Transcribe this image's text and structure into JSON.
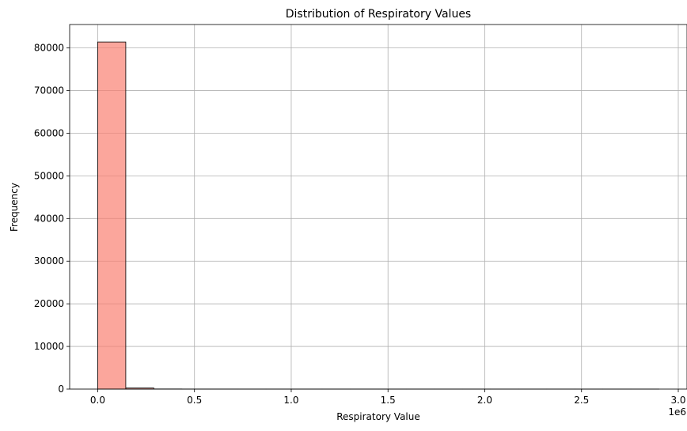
{
  "chart_data": {
    "type": "bar",
    "subtype": "histogram",
    "title": "Distribution of Respiratory Values",
    "xlabel": "Respiratory Value",
    "ylabel": "Frequency",
    "x_offset_label": "1e6",
    "bar_color": "#fa8072",
    "bar_opacity": 0.7,
    "edge_color": "#000000",
    "grid": true,
    "xlim": [
      -145000,
      3045000
    ],
    "ylim": [
      0,
      85500
    ],
    "xticks": [
      0,
      500000,
      1000000,
      1500000,
      2000000,
      2500000,
      3000000
    ],
    "xtick_labels": [
      "0.0",
      "0.5",
      "1.0",
      "1.5",
      "2.0",
      "2.5",
      "3.0"
    ],
    "yticks": [
      0,
      10000,
      20000,
      30000,
      40000,
      50000,
      60000,
      70000,
      80000
    ],
    "ytick_labels": [
      "0",
      "10000",
      "20000",
      "30000",
      "40000",
      "50000",
      "60000",
      "70000",
      "80000"
    ],
    "bins": [
      {
        "x0": 0,
        "x1": 145000,
        "count": 81400
      },
      {
        "x0": 145000,
        "x1": 290000,
        "count": 250
      },
      {
        "x0": 290000,
        "x1": 435000,
        "count": 30
      },
      {
        "x0": 435000,
        "x1": 580000,
        "count": 15
      },
      {
        "x0": 580000,
        "x1": 725000,
        "count": 10
      },
      {
        "x0": 725000,
        "x1": 870000,
        "count": 8
      },
      {
        "x0": 870000,
        "x1": 1015000,
        "count": 6
      },
      {
        "x0": 1015000,
        "x1": 1160000,
        "count": 5
      },
      {
        "x0": 1160000,
        "x1": 1305000,
        "count": 4
      },
      {
        "x0": 1305000,
        "x1": 1450000,
        "count": 3
      },
      {
        "x0": 1450000,
        "x1": 1595000,
        "count": 3
      },
      {
        "x0": 1595000,
        "x1": 1740000,
        "count": 2
      },
      {
        "x0": 1740000,
        "x1": 1885000,
        "count": 2
      },
      {
        "x0": 1885000,
        "x1": 2030000,
        "count": 2
      },
      {
        "x0": 2030000,
        "x1": 2175000,
        "count": 1
      },
      {
        "x0": 2175000,
        "x1": 2320000,
        "count": 1
      },
      {
        "x0": 2320000,
        "x1": 2465000,
        "count": 1
      },
      {
        "x0": 2465000,
        "x1": 2610000,
        "count": 1
      },
      {
        "x0": 2610000,
        "x1": 2755000,
        "count": 1
      },
      {
        "x0": 2755000,
        "x1": 2900000,
        "count": 1
      }
    ]
  }
}
